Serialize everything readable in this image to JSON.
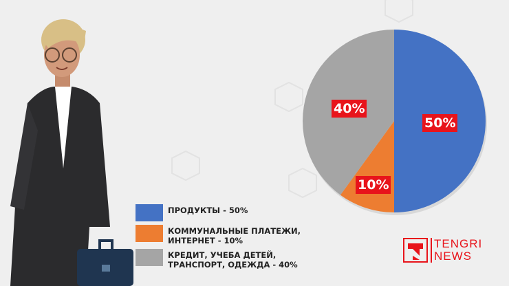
{
  "chart_data": {
    "type": "pie",
    "start": "top",
    "direction": "clockwise",
    "slices": [
      {
        "label": "ПРОДУКТЫ - 50%",
        "value": 50,
        "data_label": "50%",
        "color": "#4472c4"
      },
      {
        "label": "КОММУНАЛЬНЫЕ ПЛАТЕЖИ, ИНТЕРНЕТ - 10%",
        "value": 10,
        "data_label": "10%",
        "color": "#ed7d31"
      },
      {
        "label": "КРЕДИТ, УЧЕБА ДЕТЕЙ, ТРАНСПОРТ, ОДЕЖДА - 40%",
        "value": 40,
        "data_label": "40%",
        "color": "#a5a5a5"
      }
    ],
    "legend": "bottom-left",
    "data_label_color": "#e8141b"
  },
  "legend_lines": [
    [
      "ПРОДУКТЫ - 50%"
    ],
    [
      "КОММУНАЛЬНЫЕ ПЛАТЕЖИ,",
      "ИНТЕРНЕТ - 10%"
    ],
    [
      "КРЕДИТ, УЧЕБА ДЕТЕЙ,",
      "ТРАНСПОРТ, ОДЕЖДА - 40%"
    ]
  ],
  "logo": {
    "line1": "TENGRI",
    "line2": "NEWS",
    "color": "#e8141b"
  }
}
